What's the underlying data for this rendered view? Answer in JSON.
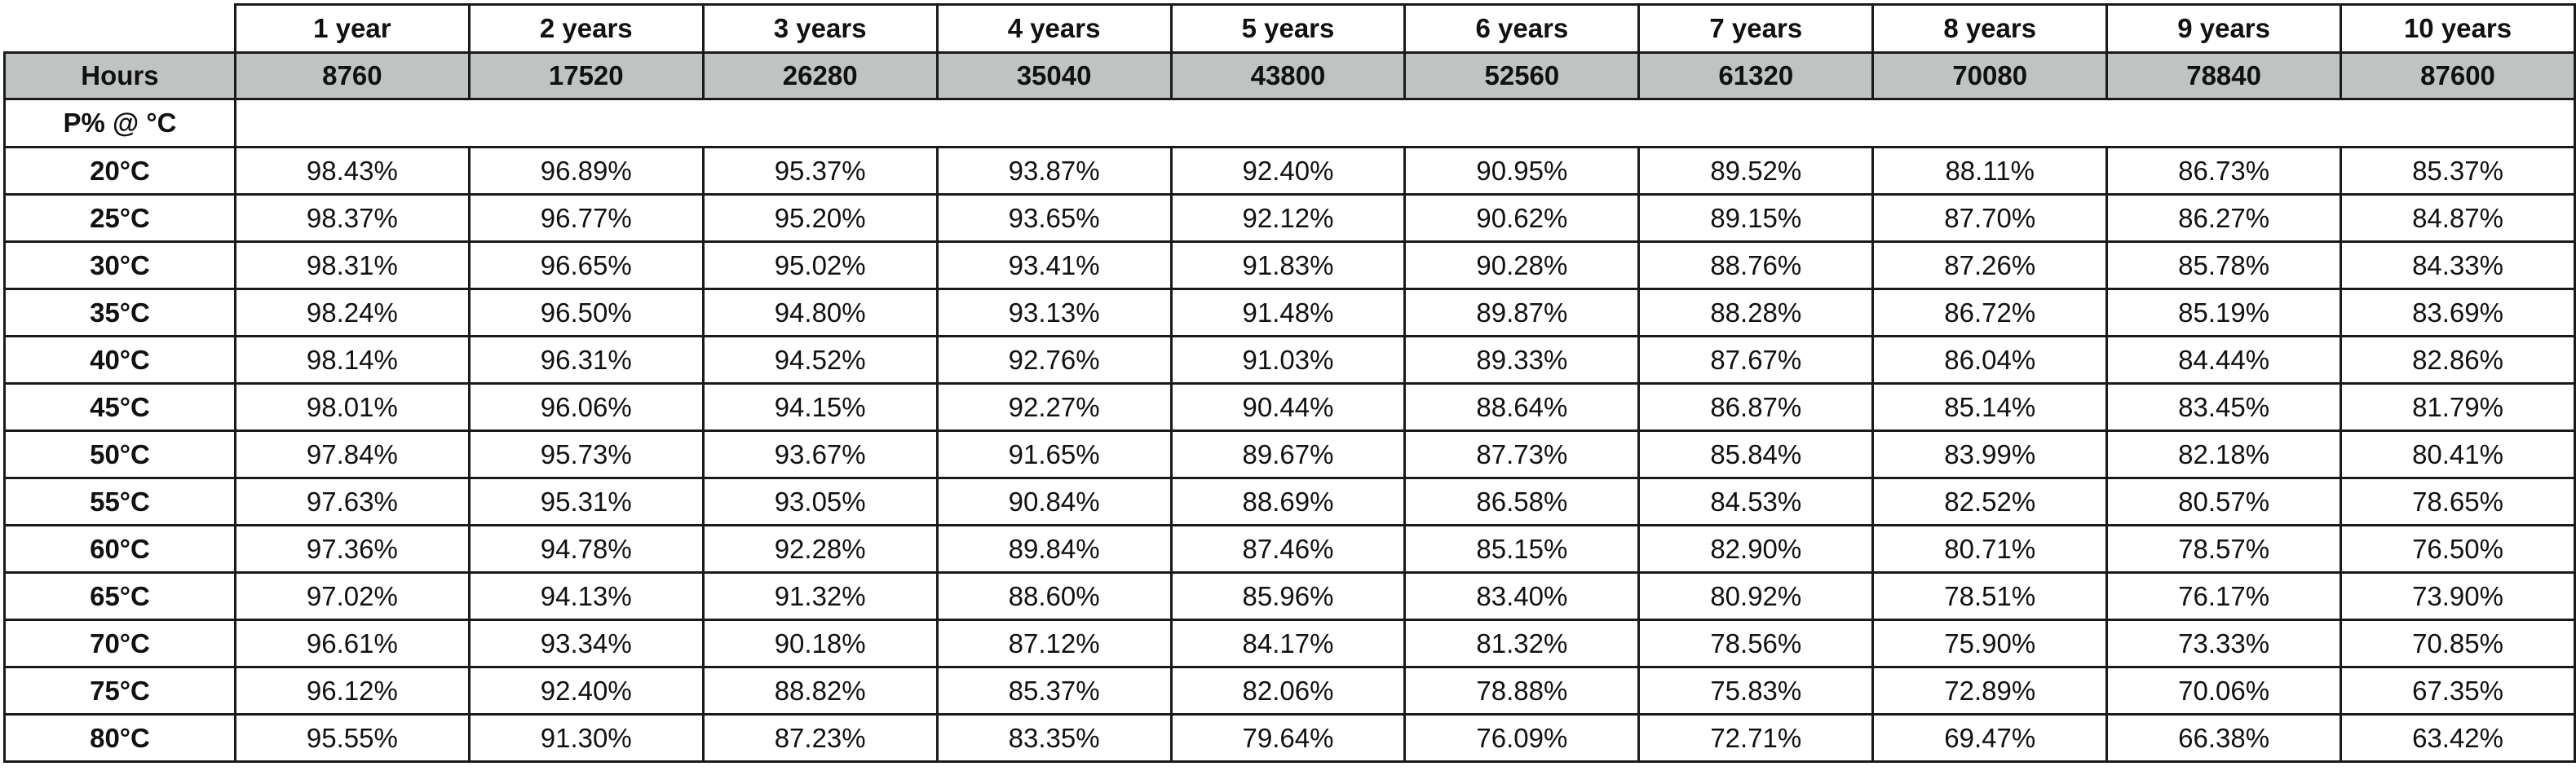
{
  "table": {
    "year_headers": [
      "1 year",
      "2 years",
      "3 years",
      "4 years",
      "5 years",
      "6 years",
      "7 years",
      "8 years",
      "9 years",
      "10 years"
    ],
    "hours_label": "Hours",
    "hours": [
      "8760",
      "17520",
      "26280",
      "35040",
      "43800",
      "52560",
      "61320",
      "70080",
      "78840",
      "87600"
    ],
    "unit_label": "P% @ °C",
    "rows": [
      {
        "temp": "20°C",
        "values": [
          "98.43%",
          "96.89%",
          "95.37%",
          "93.87%",
          "92.40%",
          "90.95%",
          "89.52%",
          "88.11%",
          "86.73%",
          "85.37%"
        ]
      },
      {
        "temp": "25°C",
        "values": [
          "98.37%",
          "96.77%",
          "95.20%",
          "93.65%",
          "92.12%",
          "90.62%",
          "89.15%",
          "87.70%",
          "86.27%",
          "84.87%"
        ]
      },
      {
        "temp": "30°C",
        "values": [
          "98.31%",
          "96.65%",
          "95.02%",
          "93.41%",
          "91.83%",
          "90.28%",
          "88.76%",
          "87.26%",
          "85.78%",
          "84.33%"
        ]
      },
      {
        "temp": "35°C",
        "values": [
          "98.24%",
          "96.50%",
          "94.80%",
          "93.13%",
          "91.48%",
          "89.87%",
          "88.28%",
          "86.72%",
          "85.19%",
          "83.69%"
        ]
      },
      {
        "temp": "40°C",
        "values": [
          "98.14%",
          "96.31%",
          "94.52%",
          "92.76%",
          "91.03%",
          "89.33%",
          "87.67%",
          "86.04%",
          "84.44%",
          "82.86%"
        ]
      },
      {
        "temp": "45°C",
        "values": [
          "98.01%",
          "96.06%",
          "94.15%",
          "92.27%",
          "90.44%",
          "88.64%",
          "86.87%",
          "85.14%",
          "83.45%",
          "81.79%"
        ]
      },
      {
        "temp": "50°C",
        "values": [
          "97.84%",
          "95.73%",
          "93.67%",
          "91.65%",
          "89.67%",
          "87.73%",
          "85.84%",
          "83.99%",
          "82.18%",
          "80.41%"
        ]
      },
      {
        "temp": "55°C",
        "values": [
          "97.63%",
          "95.31%",
          "93.05%",
          "90.84%",
          "88.69%",
          "86.58%",
          "84.53%",
          "82.52%",
          "80.57%",
          "78.65%"
        ]
      },
      {
        "temp": "60°C",
        "values": [
          "97.36%",
          "94.78%",
          "92.28%",
          "89.84%",
          "87.46%",
          "85.15%",
          "82.90%",
          "80.71%",
          "78.57%",
          "76.50%"
        ]
      },
      {
        "temp": "65°C",
        "values": [
          "97.02%",
          "94.13%",
          "91.32%",
          "88.60%",
          "85.96%",
          "83.40%",
          "80.92%",
          "78.51%",
          "76.17%",
          "73.90%"
        ]
      },
      {
        "temp": "70°C",
        "values": [
          "96.61%",
          "93.34%",
          "90.18%",
          "87.12%",
          "84.17%",
          "81.32%",
          "78.56%",
          "75.90%",
          "73.33%",
          "70.85%"
        ]
      },
      {
        "temp": "75°C",
        "values": [
          "96.12%",
          "92.40%",
          "88.82%",
          "85.37%",
          "82.06%",
          "78.88%",
          "75.83%",
          "72.89%",
          "70.06%",
          "67.35%"
        ]
      },
      {
        "temp": "80°C",
        "values": [
          "95.55%",
          "91.30%",
          "87.23%",
          "83.35%",
          "79.64%",
          "76.09%",
          "72.71%",
          "69.47%",
          "66.38%",
          "63.42%"
        ]
      }
    ]
  }
}
